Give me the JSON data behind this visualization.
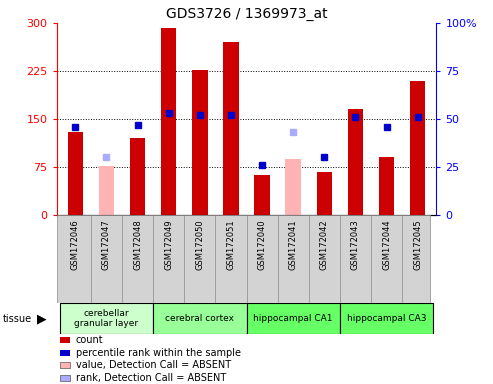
{
  "title": "GDS3726 / 1369973_at",
  "samples": [
    "GSM172046",
    "GSM172047",
    "GSM172048",
    "GSM172049",
    "GSM172050",
    "GSM172051",
    "GSM172040",
    "GSM172041",
    "GSM172042",
    "GSM172043",
    "GSM172044",
    "GSM172045"
  ],
  "count_values": [
    130,
    null,
    120,
    293,
    227,
    271,
    63,
    null,
    68,
    165,
    90,
    210
  ],
  "absent_value_values": [
    null,
    76,
    null,
    null,
    null,
    null,
    null,
    87,
    null,
    null,
    null,
    null
  ],
  "percentile_ranks": [
    46,
    null,
    47,
    53,
    52,
    52,
    26,
    null,
    30,
    51,
    46,
    51
  ],
  "absent_rank_values": [
    null,
    30,
    null,
    null,
    null,
    null,
    null,
    43,
    null,
    null,
    null,
    null
  ],
  "tissue_groups": [
    {
      "label": "cerebellar\ngranular layer",
      "start": 0,
      "end": 3,
      "color": "#ccffcc"
    },
    {
      "label": "cerebral cortex",
      "start": 3,
      "end": 6,
      "color": "#99ff99"
    },
    {
      "label": "hippocampal CA1",
      "start": 6,
      "end": 9,
      "color": "#66ff66"
    },
    {
      "label": "hippocampal CA3",
      "start": 9,
      "end": 12,
      "color": "#66ff66"
    }
  ],
  "left_ylim": [
    0,
    300
  ],
  "right_ylim": [
    0,
    100
  ],
  "left_yticks": [
    0,
    75,
    150,
    225,
    300
  ],
  "right_yticks": [
    0,
    25,
    50,
    75,
    100
  ],
  "right_ytick_labels": [
    "0",
    "25",
    "50",
    "75",
    "100%"
  ],
  "bar_color": "#cc0000",
  "absent_bar_color": "#ffb3b3",
  "rank_color": "#0000cc",
  "absent_rank_color": "#aaaaff",
  "bar_width": 0.5,
  "rank_marker_size": 5
}
